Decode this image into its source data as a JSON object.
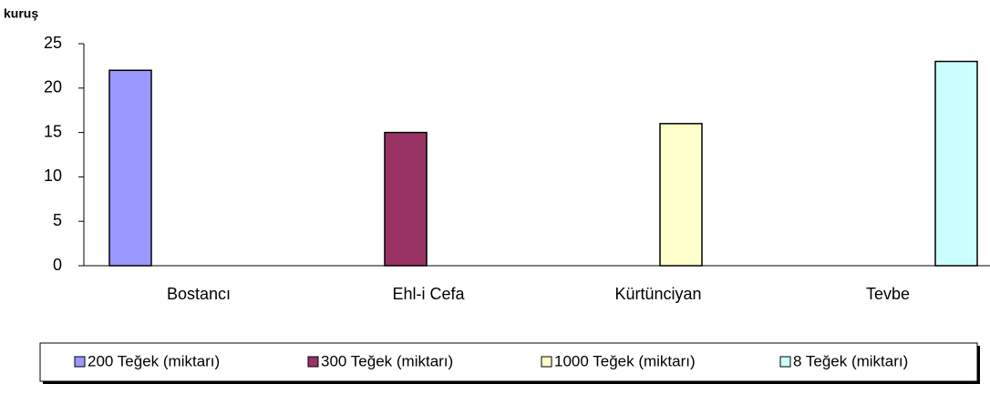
{
  "chart_data": {
    "type": "bar",
    "title": "kuruş",
    "categories": [
      "Bostancı",
      "Ehl-i Cefa",
      "Kürtünciyan",
      "Tevbe"
    ],
    "series": [
      {
        "name": "200 Teğek (miktarı)",
        "color": "#9999ff",
        "values": [
          22,
          null,
          null,
          null
        ]
      },
      {
        "name": "300 Teğek (miktarı)",
        "color": "#993366",
        "values": [
          null,
          15,
          null,
          null
        ]
      },
      {
        "name": "1000 Teğek (miktarı)",
        "color": "#ffffcc",
        "values": [
          null,
          null,
          16,
          null
        ]
      },
      {
        "name": "8 Teğek (miktarı)",
        "color": "#ccffff",
        "values": [
          null,
          null,
          null,
          23
        ]
      }
    ],
    "ylim": [
      0,
      25
    ],
    "yticks": [
      0,
      5,
      10,
      15,
      20,
      25
    ],
    "grid": false,
    "legend": "bottom"
  }
}
